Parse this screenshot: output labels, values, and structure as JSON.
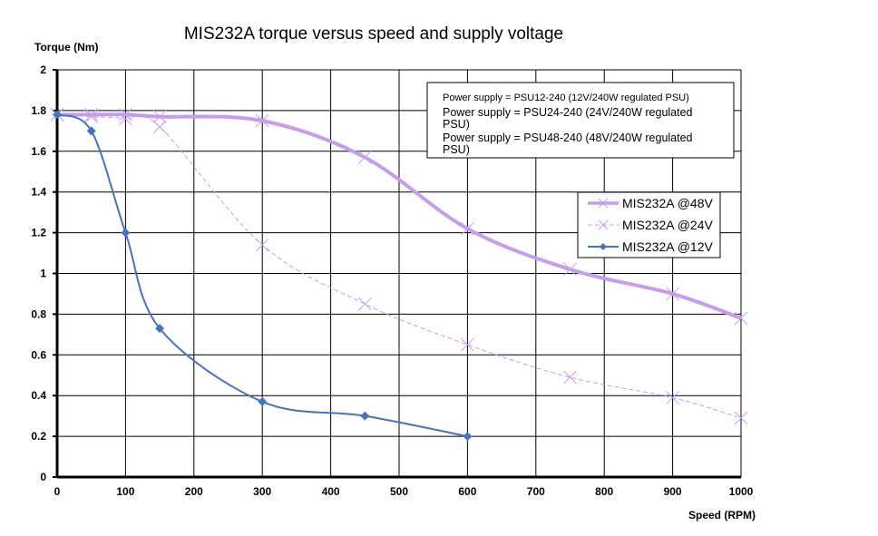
{
  "chart_data": {
    "type": "line",
    "title": "MIS232A torque versus speed and supply voltage",
    "xlabel": "Speed (RPM)",
    "ylabel": "Torque (Nm)",
    "xlim": [
      0,
      1000
    ],
    "ylim": [
      0,
      2
    ],
    "xticks": [
      0,
      100,
      200,
      300,
      400,
      500,
      600,
      700,
      800,
      900,
      1000
    ],
    "yticks": [
      0,
      0.2,
      0.4,
      0.6,
      0.8,
      1,
      1.2,
      1.4,
      1.6,
      1.8,
      2
    ],
    "ytick_labels": [
      "0",
      "0.2",
      "0.4",
      "0.6",
      "0.8",
      "1",
      "1.2",
      "1.4",
      "1.6",
      "1.8",
      "2"
    ],
    "grid": true,
    "legend_position": "right",
    "series": [
      {
        "name": "MIS232A @48V",
        "color": "#c89bf0",
        "style": "solid-thick",
        "marker": "x",
        "x": [
          0,
          50,
          100,
          150,
          300,
          450,
          600,
          750,
          900,
          1000
        ],
        "y": [
          1.78,
          1.78,
          1.78,
          1.77,
          1.75,
          1.57,
          1.22,
          1.02,
          0.9,
          0.78
        ]
      },
      {
        "name": "MIS232A @24V",
        "color": "#c89bf0",
        "style": "dashed",
        "marker": "x",
        "x": [
          0,
          50,
          100,
          150,
          300,
          450,
          600,
          750,
          900,
          1000
        ],
        "y": [
          1.78,
          1.77,
          1.76,
          1.72,
          1.14,
          0.85,
          0.65,
          0.49,
          0.39,
          0.29
        ]
      },
      {
        "name": "MIS232A @12V",
        "color": "#4472c4",
        "style": "solid",
        "marker": "diamond",
        "x": [
          0,
          50,
          100,
          150,
          300,
          450,
          600
        ],
        "y": [
          1.78,
          1.7,
          1.2,
          0.73,
          0.37,
          0.3,
          0.2
        ]
      }
    ],
    "annotations": [
      "Power supply = PSU12-240 (12V/240W regulated PSU)",
      "Power supply = PSU24-240  (24V/240W regulated",
      "PSU)",
      "Power supply = PSU48-240  (48V/240W regulated",
      "PSU)"
    ]
  }
}
